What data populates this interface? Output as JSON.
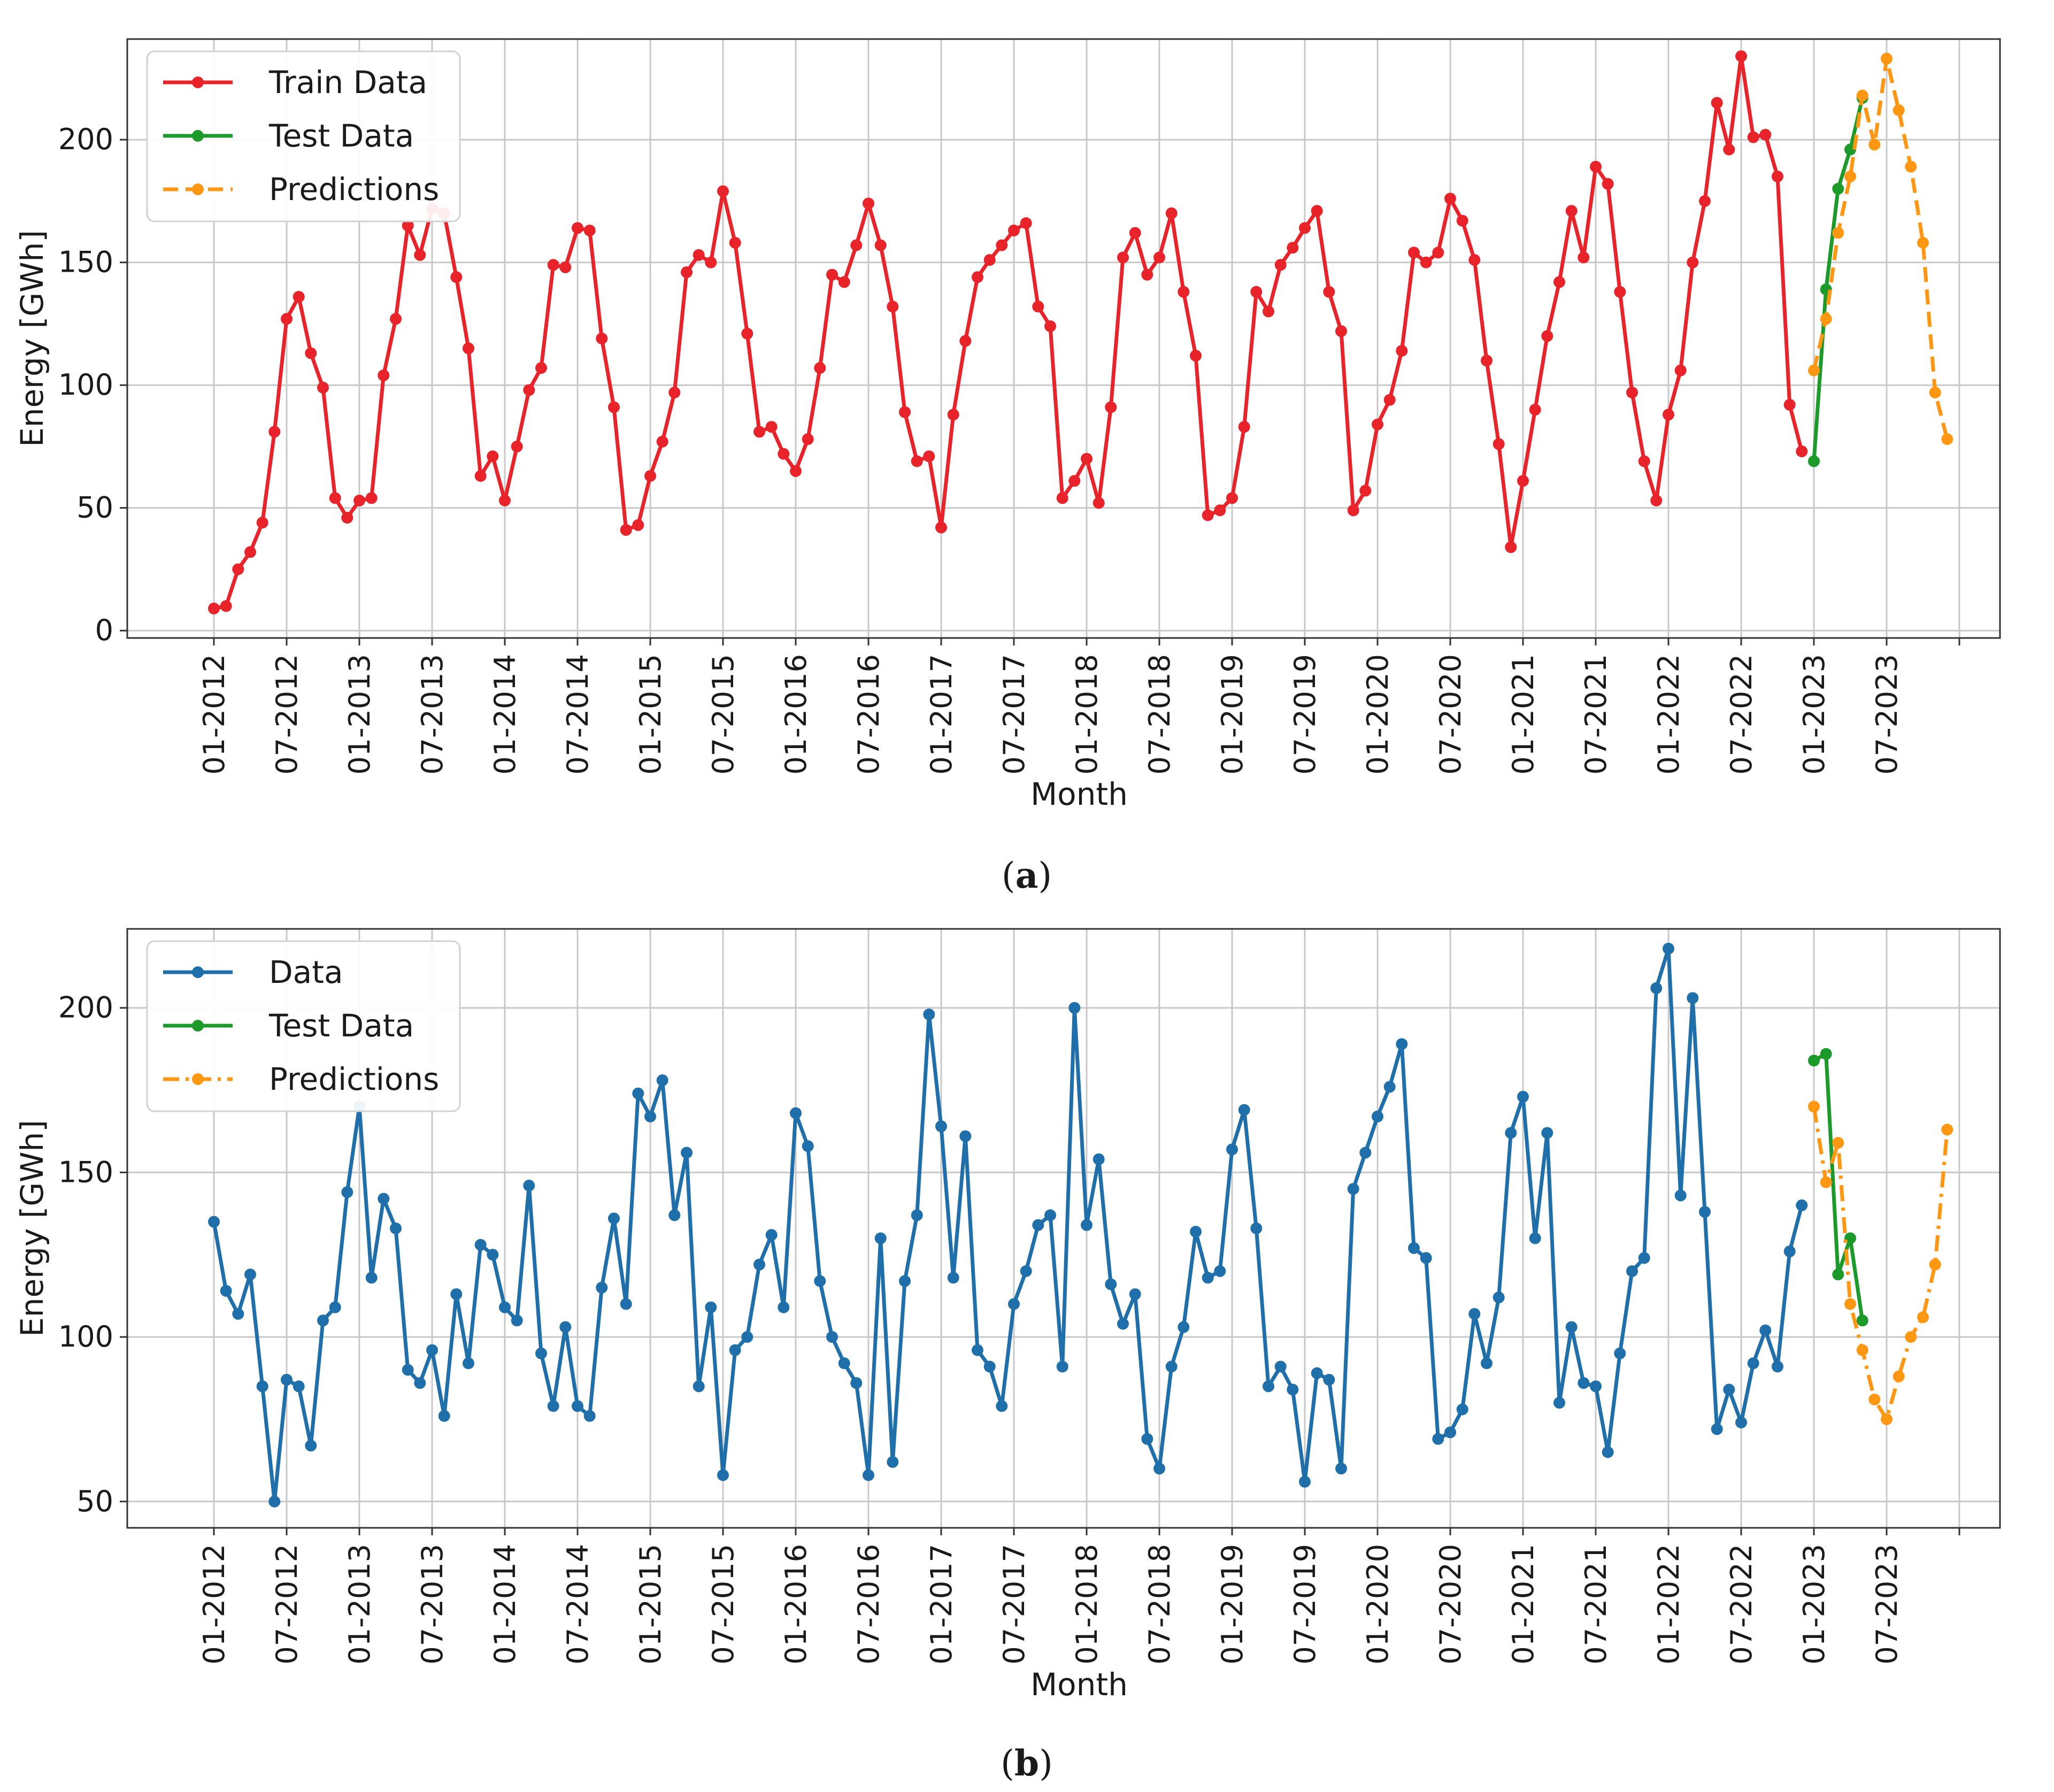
{
  "chart_data": [
    {
      "type": "line",
      "caption_open": "(",
      "caption_letter": "a",
      "caption_close": ")",
      "xlabel": "Month",
      "ylabel": "Energy [GWh]",
      "ylim": [
        -3,
        241
      ],
      "yticks": [
        0,
        50,
        100,
        150,
        200
      ],
      "xlim": [
        -0.12,
        1.005
      ],
      "xticks": [
        "01-2012",
        "07-2012",
        "01-2013",
        "07-2013",
        "01-2014",
        "07-2014",
        "01-2015",
        "07-2015",
        "01-2016",
        "07-2016",
        "01-2017",
        "07-2017",
        "01-2018",
        "07-2018",
        "01-2019",
        "07-2019",
        "01-2020",
        "07-2020",
        "01-2021",
        "07-2021",
        "01-2022",
        "07-2022",
        "01-2023",
        "07-2023",
        ""
      ],
      "legend_position": "upper left",
      "series": [
        {
          "name": "Train Data",
          "color": "#e8232a",
          "dash": "solid",
          "values": [
            9,
            10,
            25,
            32,
            44,
            81,
            127,
            136,
            113,
            99,
            54,
            46,
            53,
            54,
            104,
            127,
            165,
            153,
            172,
            170,
            144,
            115,
            63,
            71,
            53,
            75,
            98,
            107,
            149,
            148,
            164,
            163,
            119,
            91,
            41,
            43,
            63,
            77,
            97,
            146,
            153,
            150,
            179,
            158,
            121,
            81,
            83,
            72,
            65,
            78,
            107,
            145,
            142,
            157,
            174,
            157,
            132,
            89,
            69,
            71,
            42,
            88,
            118,
            144,
            151,
            157,
            163,
            166,
            132,
            124,
            54,
            61,
            70,
            52,
            91,
            152,
            162,
            145,
            152,
            170,
            138,
            112,
            47,
            49,
            54,
            83,
            138,
            130,
            149,
            156,
            164,
            171,
            138,
            122,
            49,
            57,
            84,
            94,
            114,
            154,
            150,
            154,
            176,
            167,
            151,
            110,
            76,
            34,
            61,
            90,
            120,
            142,
            171,
            152,
            189,
            182,
            138,
            97,
            69,
            53,
            88,
            106,
            150,
            175,
            215,
            196,
            234,
            201,
            202,
            185,
            92,
            73
          ]
        },
        {
          "name": "Test Data",
          "color": "#1c9b2b",
          "dash": "solid",
          "start_index": 132,
          "values": [
            69,
            139,
            180,
            196,
            217
          ]
        },
        {
          "name": "Predictions",
          "color": "#ff9712",
          "dash": "dashed",
          "start_index": 132,
          "values": [
            106,
            127,
            162,
            185,
            218,
            198,
            233,
            212,
            189,
            158,
            97,
            78
          ]
        }
      ]
    },
    {
      "type": "line",
      "caption_open": "(",
      "caption_letter": "b",
      "caption_close": ")",
      "xlabel": "Month",
      "ylabel": "Energy [GWh]",
      "ylim": [
        42,
        224
      ],
      "yticks": [
        50,
        100,
        150,
        200
      ],
      "xlim": [
        -0.12,
        1.005
      ],
      "xticks": [
        "01-2012",
        "07-2012",
        "01-2013",
        "07-2013",
        "01-2014",
        "07-2014",
        "01-2015",
        "07-2015",
        "01-2016",
        "07-2016",
        "01-2017",
        "07-2017",
        "01-2018",
        "07-2018",
        "01-2019",
        "07-2019",
        "01-2020",
        "07-2020",
        "01-2021",
        "07-2021",
        "01-2022",
        "07-2022",
        "01-2023",
        "07-2023",
        ""
      ],
      "legend_position": "upper left",
      "series": [
        {
          "name": "Data",
          "color": "#1f6faa",
          "dash": "solid",
          "values": [
            135,
            114,
            107,
            119,
            85,
            50,
            87,
            85,
            67,
            105,
            109,
            144,
            170,
            118,
            142,
            133,
            90,
            86,
            96,
            76,
            113,
            92,
            128,
            125,
            109,
            105,
            146,
            95,
            79,
            103,
            79,
            76,
            115,
            136,
            110,
            174,
            167,
            178,
            137,
            156,
            85,
            109,
            58,
            96,
            100,
            122,
            131,
            109,
            168,
            158,
            117,
            100,
            92,
            86,
            58,
            130,
            62,
            117,
            137,
            198,
            164,
            118,
            161,
            96,
            91,
            79,
            110,
            120,
            134,
            137,
            91,
            200,
            134,
            154,
            116,
            104,
            113,
            69,
            60,
            91,
            103,
            132,
            118,
            120,
            157,
            169,
            133,
            85,
            91,
            84,
            56,
            89,
            87,
            60,
            145,
            156,
            167,
            176,
            189,
            127,
            124,
            69,
            71,
            78,
            107,
            92,
            112,
            162,
            173,
            130,
            162,
            80,
            103,
            86,
            85,
            65,
            95,
            120,
            124,
            206,
            218,
            143,
            203,
            138,
            72,
            84,
            74,
            92,
            102,
            91,
            126,
            140
          ]
        },
        {
          "name": "Test Data",
          "color": "#1c9b2b",
          "dash": "solid",
          "start_index": 132,
          "values": [
            184,
            186,
            119,
            130,
            105
          ]
        },
        {
          "name": "Predictions",
          "color": "#ff9712",
          "dash": "dashdot",
          "start_index": 132,
          "values": [
            170,
            147,
            159,
            110,
            96,
            81,
            75,
            88,
            100,
            106,
            122,
            163
          ]
        }
      ]
    }
  ]
}
